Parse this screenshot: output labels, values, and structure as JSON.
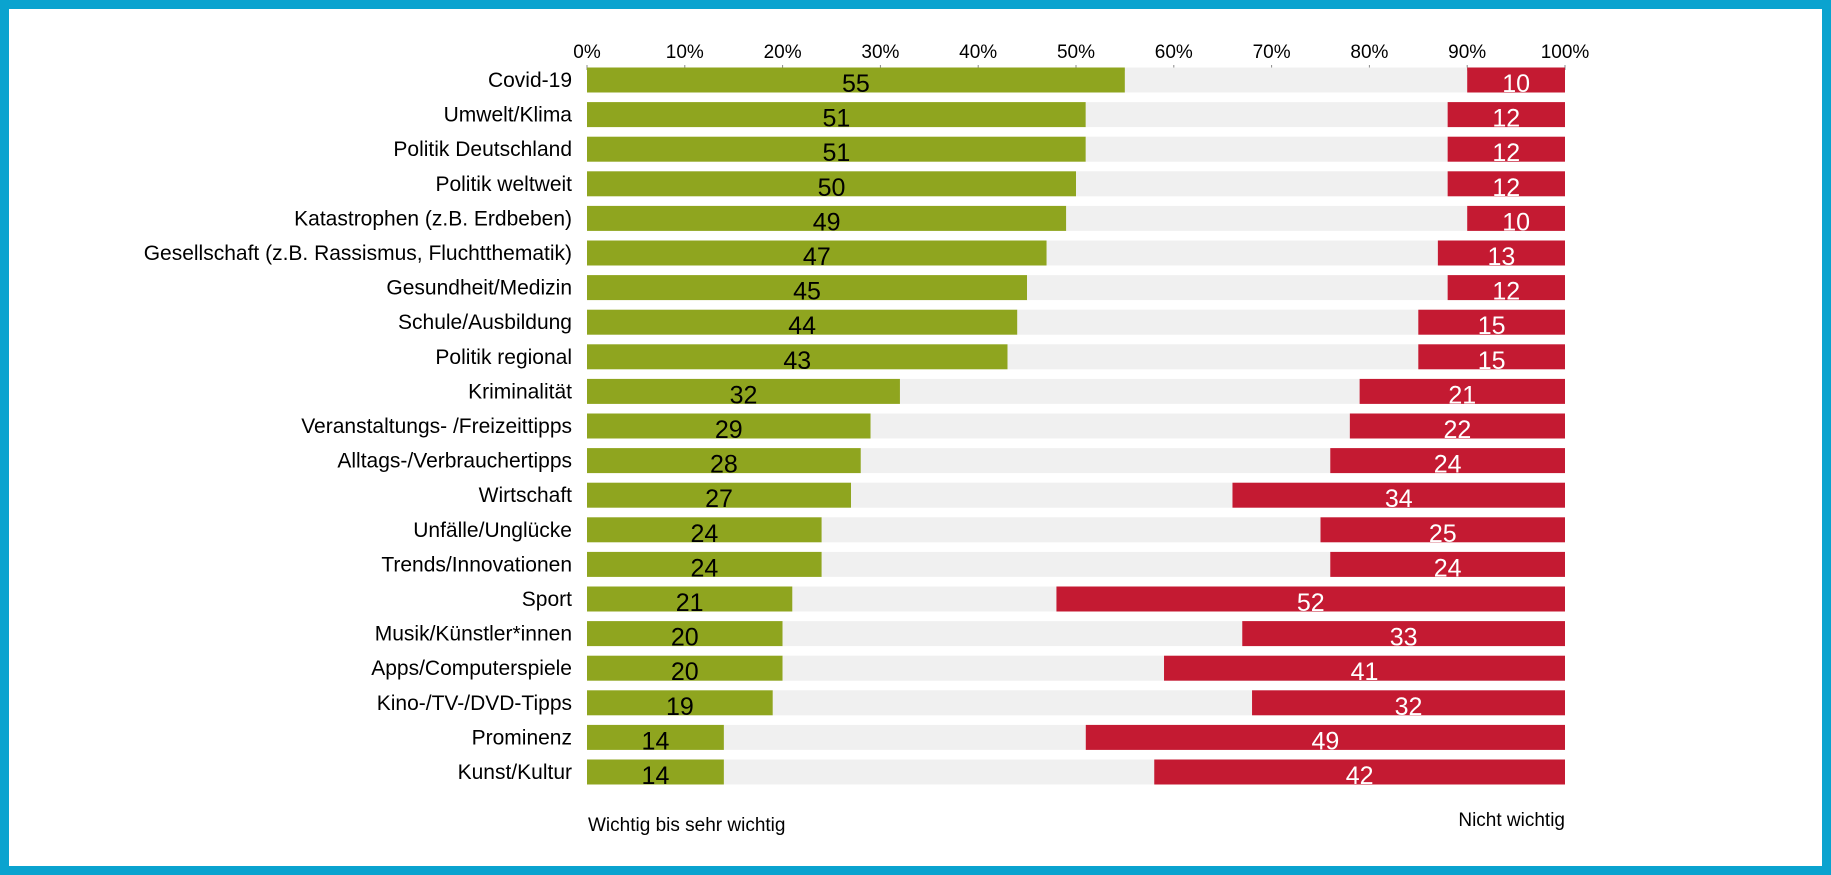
{
  "chart_data": {
    "type": "bar",
    "orientation": "horizontal",
    "stacked": true,
    "xlim": [
      0,
      100
    ],
    "x_ticks": [
      "0%",
      "10%",
      "20%",
      "30%",
      "40%",
      "50%",
      "60%",
      "70%",
      "80%",
      "90%",
      "100%"
    ],
    "categories": [
      "Covid-19",
      "Umwelt/Klima",
      "Politik Deutschland",
      "Politik weltweit",
      "Katastrophen (z.B. Erdbeben)",
      "Gesellschaft (z.B. Rassismus, Fluchtthematik)",
      "Gesundheit/Medizin",
      "Schule/Ausbildung",
      "Politik regional",
      "Kriminalität",
      "Veranstaltungs- /Freizeittipps",
      "Alltags-/Verbrauchertipps",
      "Wirtschaft",
      "Unfälle/Unglücke",
      "Trends/Innovationen",
      "Sport",
      "Musik/Künstler*innen",
      "Apps/Computerspiele",
      "Kino-/TV-/DVD-Tipps",
      "Prominenz",
      "Kunst/Kultur"
    ],
    "series": [
      {
        "name": "Wichtig bis sehr wichtig",
        "color": "#8fa51f",
        "label_color": "#000000",
        "values": [
          55,
          51,
          51,
          50,
          49,
          47,
          45,
          44,
          43,
          32,
          29,
          28,
          27,
          24,
          24,
          21,
          20,
          20,
          19,
          14,
          14
        ]
      },
      {
        "name": "",
        "color": "#f0f0f0",
        "values": [
          35,
          37,
          37,
          38,
          41,
          40,
          43,
          41,
          42,
          47,
          49,
          48,
          39,
          51,
          52,
          27,
          47,
          39,
          49,
          37,
          44
        ]
      },
      {
        "name": "Nicht wichtig",
        "color": "#c41a32",
        "label_color": "#ffffff",
        "values": [
          10,
          12,
          12,
          12,
          10,
          13,
          12,
          15,
          15,
          21,
          22,
          24,
          34,
          25,
          24,
          52,
          33,
          41,
          32,
          49,
          42
        ]
      }
    ],
    "legend": {
      "left": "Wichtig bis sehr wichtig",
      "right": "Nicht wichtig",
      "placement": "bottom"
    },
    "frame_color": "#0aa3cf"
  }
}
